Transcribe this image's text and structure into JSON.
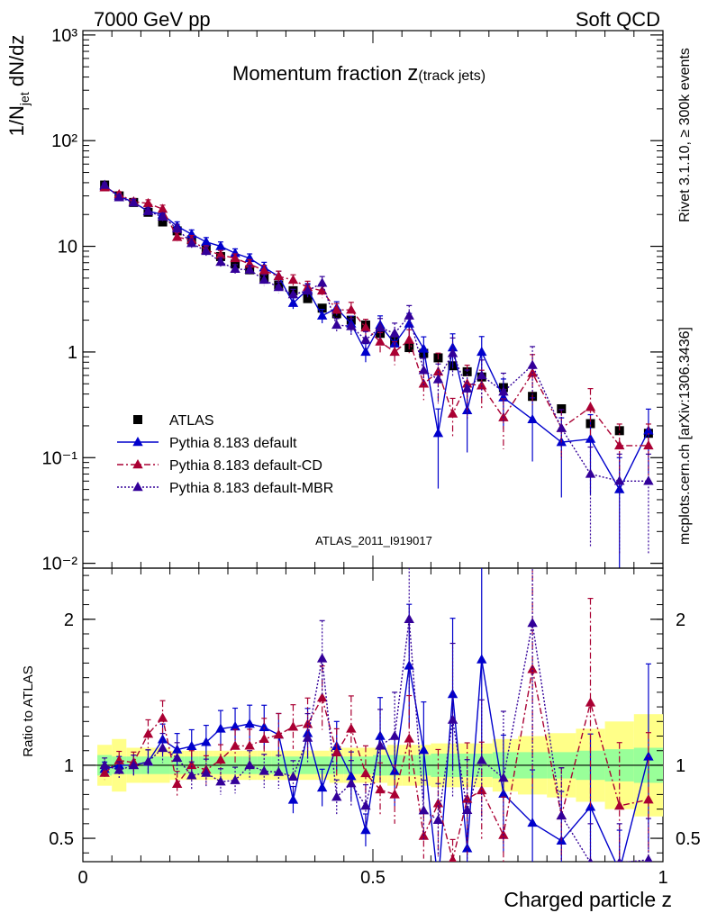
{
  "header": {
    "left": "7000 GeV pp",
    "right": "Soft QCD",
    "title_main": "Momentum fraction ",
    "title_z": "z",
    "title_sub": "(track jets)",
    "side_top": "Rivet 3.1.10, ≥ 300k events",
    "side_bottom": "mcplots.cern.ch [arXiv:1306.3436]",
    "analysis_id": "ATLAS_2011_I919017"
  },
  "colors": {
    "data": "#000000",
    "default": "#0000cc",
    "cd": "#aa0033",
    "mbr": "#330099",
    "band_inner": "#99ff99",
    "band_outer": "#ffff88",
    "analysis_text": "#999999",
    "side_text": "#777777"
  },
  "chart_data": {
    "type": "scatter",
    "xlabel": "Charged particle z",
    "ylabel_top": "1/N_jet dN/dz",
    "ylabel_bottom": "Ratio to ATLAS",
    "xlim": [
      0,
      1
    ],
    "ylim_top": [
      0.009,
      1100
    ],
    "ylog_top": true,
    "ylim_ratio": [
      0.34,
      2.35
    ],
    "x_ticks": [
      "0",
      "0.5",
      "1"
    ],
    "y_ticks_top": [
      "10^-2",
      "10^-1",
      "1",
      "10",
      "10^2",
      "10^3"
    ],
    "y_ticks_ratio": [
      "0.5",
      "1",
      "2"
    ],
    "x": [
      0.0375,
      0.0625,
      0.0875,
      0.1125,
      0.1375,
      0.1625,
      0.1875,
      0.2125,
      0.2375,
      0.2625,
      0.2875,
      0.3125,
      0.3375,
      0.3625,
      0.3875,
      0.4125,
      0.4375,
      0.4625,
      0.4875,
      0.5125,
      0.5375,
      0.5625,
      0.5875,
      0.6125,
      0.6375,
      0.6625,
      0.6875,
      0.725,
      0.775,
      0.825,
      0.875,
      0.925,
      0.975
    ],
    "legend": [
      "ATLAS",
      "Pythia 8.183 default",
      "Pythia 8.183 default-CD",
      "Pythia 8.183 default-MBR"
    ],
    "series": [
      {
        "name": "ATLAS",
        "marker": "square",
        "values": [
          38,
          30,
          26,
          21,
          17,
          14,
          11.5,
          9.5,
          8,
          6.8,
          6,
          5,
          4.3,
          3.8,
          3.2,
          2.6,
          2.3,
          2,
          1.8,
          1.5,
          1.25,
          1.1,
          0.97,
          0.88,
          0.74,
          0.65,
          0.58,
          0.46,
          0.38,
          0.29,
          0.21,
          0.18,
          0.17
        ],
        "band_inner": [
          0.07,
          0.06,
          0.06,
          0.06,
          0.06,
          0.06,
          0.06,
          0.06,
          0.06,
          0.06,
          0.06,
          0.06,
          0.06,
          0.06,
          0.06,
          0.06,
          0.06,
          0.06,
          0.06,
          0.07,
          0.07,
          0.07,
          0.07,
          0.08,
          0.08,
          0.08,
          0.08,
          0.09,
          0.09,
          0.09,
          0.1,
          0.11,
          0.12
        ],
        "band_outer": [
          0.14,
          0.18,
          0.12,
          0.12,
          0.12,
          0.1,
          0.1,
          0.1,
          0.1,
          0.1,
          0.1,
          0.1,
          0.1,
          0.1,
          0.1,
          0.1,
          0.12,
          0.12,
          0.12,
          0.12,
          0.14,
          0.14,
          0.14,
          0.15,
          0.15,
          0.15,
          0.15,
          0.18,
          0.2,
          0.22,
          0.25,
          0.3,
          0.35
        ]
      },
      {
        "name": "Pythia 8.183 default",
        "marker": "triangle",
        "line": "solid",
        "values": [
          37,
          30,
          26,
          21.5,
          20,
          15.5,
          13,
          11,
          10,
          8.6,
          7.7,
          6.3,
          5.2,
          2.9,
          3.9,
          2.2,
          2.6,
          1.85,
          1.0,
          1.8,
          1.2,
          1.85,
          1.07,
          0.17,
          1.1,
          0.28,
          1.0,
          0.37,
          0.23,
          0.14,
          0.15,
          0.05,
          0.18
        ],
        "rel_err": [
          0.05,
          0.06,
          0.07,
          0.08,
          0.09,
          0.1,
          0.1,
          0.1,
          0.1,
          0.1,
          0.1,
          0.12,
          0.12,
          0.12,
          0.14,
          0.15,
          0.15,
          0.18,
          0.2,
          0.22,
          0.25,
          0.25,
          0.3,
          0.7,
          0.35,
          0.6,
          0.4,
          0.5,
          0.6,
          0.7,
          0.7,
          1.0,
          0.6
        ]
      },
      {
        "name": "Pythia 8.183 default-CD",
        "marker": "triangle",
        "line": "dashdot",
        "values": [
          36,
          31,
          26.5,
          25.5,
          22.5,
          12.2,
          11.5,
          9.2,
          8.3,
          7.7,
          6.8,
          5.9,
          5.2,
          4.8,
          4.1,
          3.8,
          2.5,
          2.5,
          1.7,
          1.25,
          1.0,
          1.3,
          0.5,
          0.65,
          0.26,
          0.5,
          0.48,
          0.24,
          0.63,
          0.19,
          0.3,
          0.13,
          0.13
        ],
        "rel_err": [
          0.05,
          0.06,
          0.07,
          0.08,
          0.09,
          0.1,
          0.1,
          0.1,
          0.1,
          0.1,
          0.1,
          0.12,
          0.12,
          0.12,
          0.14,
          0.15,
          0.15,
          0.18,
          0.2,
          0.22,
          0.25,
          0.25,
          0.3,
          0.5,
          0.4,
          0.5,
          0.4,
          0.5,
          0.5,
          0.5,
          0.5,
          0.6,
          0.6
        ]
      },
      {
        "name": "Pythia 8.183 default-MBR",
        "marker": "triangle",
        "line": "dotted",
        "values": [
          38,
          29,
          26,
          21.5,
          19,
          14.7,
          10.7,
          9.0,
          7.1,
          6.1,
          6.0,
          4.8,
          4.1,
          3.5,
          3.8,
          4.5,
          1.8,
          1.75,
          1.3,
          1.7,
          1.5,
          2.2,
          0.67,
          0.55,
          0.97,
          0.45,
          0.6,
          0.42,
          0.75,
          0.19,
          0.07,
          0.06,
          0.06
        ],
        "rel_err": [
          0.05,
          0.06,
          0.07,
          0.08,
          0.09,
          0.1,
          0.1,
          0.1,
          0.1,
          0.1,
          0.1,
          0.12,
          0.12,
          0.12,
          0.14,
          0.15,
          0.15,
          0.18,
          0.2,
          0.22,
          0.25,
          0.25,
          0.3,
          0.4,
          0.4,
          0.5,
          0.4,
          0.5,
          0.5,
          0.5,
          0.8,
          0.8,
          0.8
        ]
      }
    ]
  }
}
